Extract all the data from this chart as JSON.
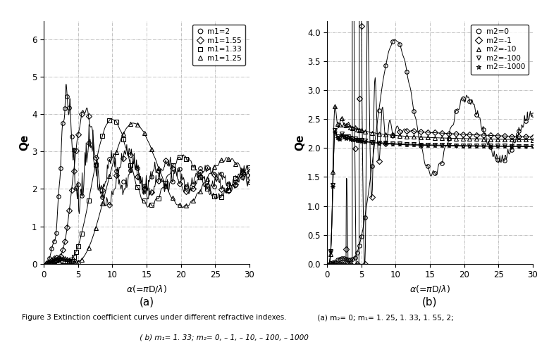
{
  "fig_width": 7.79,
  "fig_height": 4.93,
  "dpi": 100,
  "plot_a": {
    "ylabel": "Qe",
    "xlim": [
      0,
      30
    ],
    "ylim": [
      0,
      6.5
    ],
    "ylim_display": [
      0,
      6
    ],
    "yticks": [
      0,
      1,
      2,
      3,
      4,
      5,
      6
    ],
    "xticks": [
      0,
      5,
      10,
      15,
      20,
      25,
      30
    ],
    "legend_labels": [
      "m1=2",
      "m1=1.55",
      "m1=1.33",
      "m1=1.25"
    ],
    "m1_values": [
      2.0,
      1.55,
      1.33,
      1.25
    ],
    "m2_value": 0.0
  },
  "plot_b": {
    "ylabel": "Qe",
    "xlim": [
      0,
      30
    ],
    "ylim": [
      0,
      4.2
    ],
    "ylim_display": [
      0,
      4
    ],
    "yticks": [
      0,
      0.5,
      1.0,
      1.5,
      2.0,
      2.5,
      3.0,
      3.5,
      4.0
    ],
    "xticks": [
      0,
      5,
      10,
      15,
      20,
      25,
      30
    ],
    "legend_labels": [
      "m2=0",
      "m2=-1",
      "m2=-10",
      "m2=-100",
      "m2=-1000"
    ],
    "m1_value": 1.33,
    "m2_values": [
      0.0,
      -1.0,
      -10.0,
      -100.0,
      -1000.0
    ]
  },
  "caption": "Figure 3 Extinction coefficient curves under different refractive indexes.",
  "caption_a": "  (a) m₂= 0; m₁= 1. 25, 1. 33, 1. 55, 2;",
  "caption_b": " ( b) m₁= 1. 33; m₂= 0, – 1, – 10, – 100, – 1000",
  "markers_a": [
    "o",
    "D",
    "s",
    "^"
  ],
  "markers_b": [
    "o",
    "D",
    "^",
    "v",
    "*"
  ],
  "marker_size": 3,
  "linewidth": 0.7,
  "grid_color": "#888888",
  "grid_style": "-.",
  "grid_alpha": 0.7
}
